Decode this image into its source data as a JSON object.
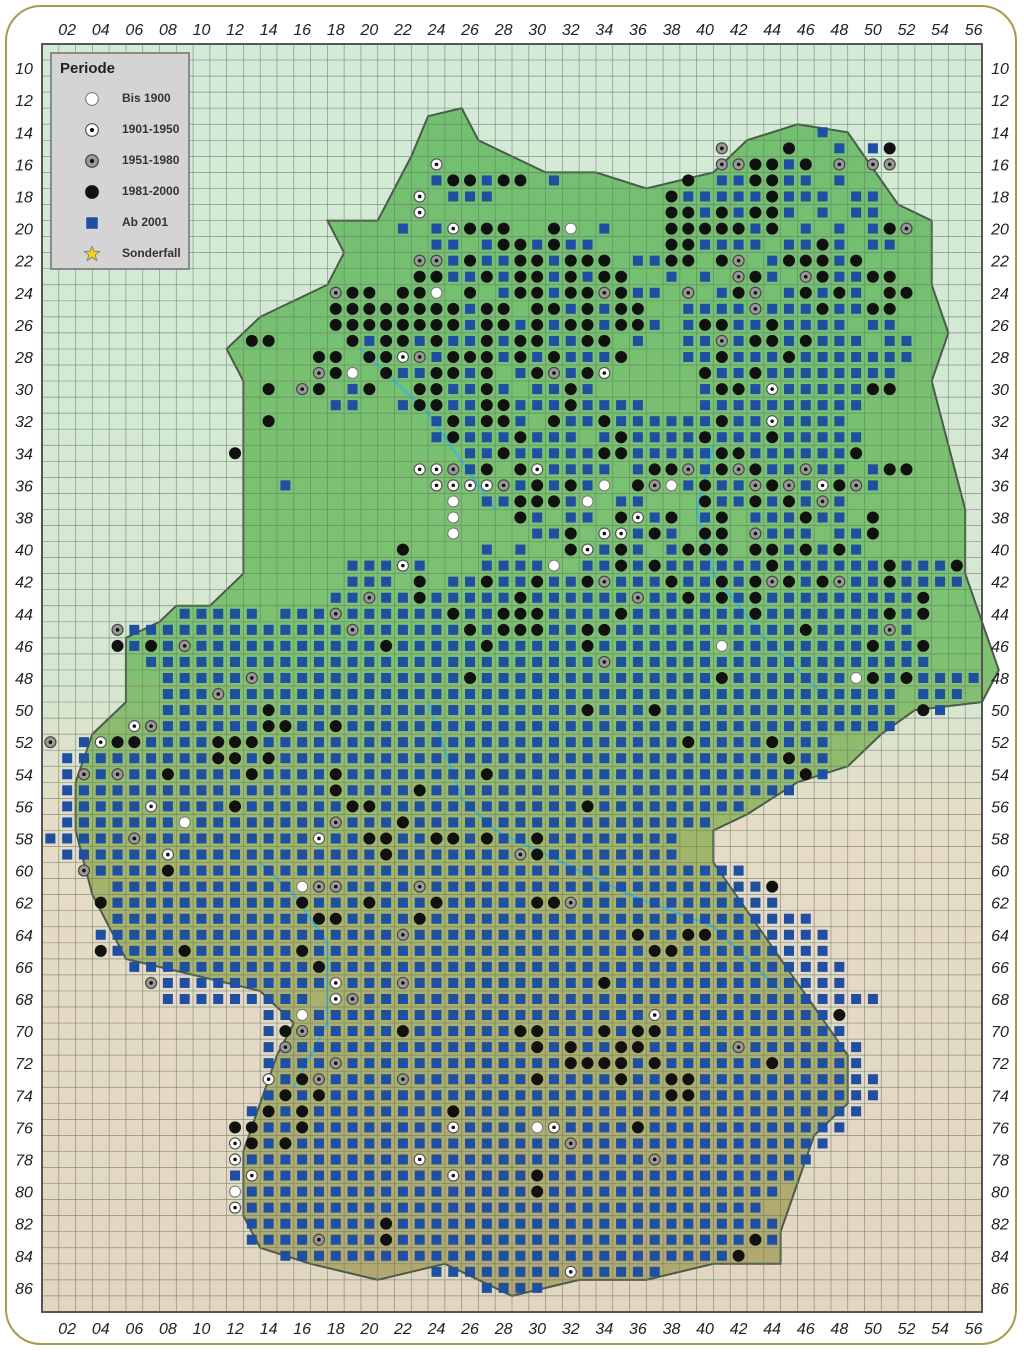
{
  "map": {
    "x_labels": [
      "02",
      "04",
      "06",
      "08",
      "10",
      "12",
      "14",
      "16",
      "18",
      "20",
      "22",
      "24",
      "26",
      "28",
      "30",
      "32",
      "34",
      "36",
      "38",
      "40",
      "42",
      "44",
      "46",
      "48",
      "50",
      "52",
      "54",
      "56"
    ],
    "y_labels": [
      "10",
      "12",
      "14",
      "16",
      "18",
      "20",
      "22",
      "24",
      "26",
      "28",
      "30",
      "32",
      "34",
      "36",
      "38",
      "40",
      "42",
      "44",
      "46",
      "48",
      "50",
      "52",
      "54",
      "56",
      "58",
      "60",
      "62",
      "64",
      "66",
      "68",
      "70",
      "72",
      "74",
      "76",
      "78",
      "80",
      "82",
      "84",
      "86"
    ],
    "colors": {
      "square": "#1f4fa0",
      "circle_black": "#111111",
      "frame": "#a89a4a",
      "grid": "#6a7a6a",
      "land_north": "#72c070",
      "land_south": "#9fb86a",
      "outside_north": "#d2ead6",
      "outside_south": "#e6dcc6",
      "rivers": "#3ab8e0"
    }
  },
  "legend": {
    "title": "Periode",
    "items": [
      {
        "key": "o",
        "label": "Bis 1900",
        "icon": "white-circle-icon"
      },
      {
        "key": "d",
        "label": "1901-1950",
        "icon": "dotted-circle-icon"
      },
      {
        "key": "g",
        "label": "1951-1980",
        "icon": "grey-dotted-circle-icon"
      },
      {
        "key": "b",
        "label": "1981-2000",
        "icon": "black-circle-icon"
      },
      {
        "key": "s",
        "label": "Ab 2001",
        "icon": "blue-square-icon"
      },
      {
        "key": "x",
        "label": "Sonderfall",
        "icon": "star-icon"
      }
    ]
  },
  "records": [
    {
      "r": 14,
      "c": 47,
      "v": "s"
    },
    {
      "r": 15,
      "c": 41,
      "v": "g...b..s.sb"
    },
    {
      "r": 16,
      "c": 24,
      "v": "d"
    },
    {
      "r": 16,
      "c": 41,
      "v": "ggbbsb.g.gg"
    },
    {
      "r": 17,
      "c": 24,
      "v": "sbbsbb.s"
    },
    {
      "r": 17,
      "c": 39,
      "v": "b.ssbbss.s"
    },
    {
      "r": 18,
      "c": 23,
      "v": "d.sss"
    },
    {
      "r": 18,
      "c": 38,
      "v": "bsssssbsss.ss"
    },
    {
      "r": 19,
      "c": 23,
      "v": "d"
    },
    {
      "r": 19,
      "c": 38,
      "v": "bbsbsbbs.s.ss"
    },
    {
      "r": 20,
      "c": 22,
      "v": "s.sdbbb..bo.s"
    },
    {
      "r": 20,
      "c": 38,
      "v": "bbbbbsb.s.s.sbg"
    },
    {
      "r": 21,
      "c": 24,
      "v": "ss.sbbsbss"
    },
    {
      "r": 21,
      "c": 38,
      "v": "bbssss.ssbs.ss"
    },
    {
      "r": 22,
      "c": 23,
      "v": "ggsbssbbsbbb.ss"
    },
    {
      "r": 22,
      "c": 38,
      "v": "bb.bg.sbbbsb"
    },
    {
      "r": 23,
      "c": 23,
      "v": "bbssbsbbsbsbb"
    },
    {
      "r": 23,
      "c": 38,
      "v": "s.s.gbs.gbssbb"
    },
    {
      "r": 24,
      "c": 18,
      "v": "gbb.bbo.b.sbbsbbgbss.b"
    },
    {
      "r": 24,
      "c": 39,
      "v": "g.sbg.sbsbs.bb"
    },
    {
      "r": 25,
      "c": 18,
      "v": "bbbbbbbbsbb.bbsbsbb"
    },
    {
      "r": 25,
      "c": 39,
      "v": "ssssgsssbssbb"
    },
    {
      "r": 26,
      "c": 18,
      "v": "bbbbbbbbsbbsbsbbsbbs"
    },
    {
      "r": 26,
      "c": 39,
      "v": "sbbssbssss.ss"
    },
    {
      "r": 27,
      "c": 13,
      "v": "bb"
    },
    {
      "r": 27,
      "c": 19,
      "v": "bsbbsbssbsbbssbb.s"
    },
    {
      "r": 27,
      "c": 39,
      "v": "ssgsbbsbsss.ss"
    },
    {
      "r": 28,
      "c": 17,
      "v": "bb.bbdgsbbbsbsbsssb"
    },
    {
      "r": 28,
      "c": 39,
      "v": "ssbsssbsssssss"
    },
    {
      "r": 29,
      "c": 17,
      "v": "gbo.bssbbsb.sbgsbd"
    },
    {
      "r": 29,
      "c": 40,
      "v": "bssbssssssss"
    },
    {
      "r": 30,
      "c": 14,
      "v": "b.gb.sb..bbssbs.ssbs"
    },
    {
      "r": 30,
      "c": 40,
      "v": "sbbsdsssssbb"
    },
    {
      "r": 31,
      "c": 18,
      "v": "ss..sbbssbbsssbssss"
    },
    {
      "r": 31,
      "c": 40,
      "v": "ssssssssss"
    },
    {
      "r": 32,
      "c": 14,
      "v": "b"
    },
    {
      "r": 32,
      "c": 24,
      "v": "sbsbbs.bssbsssss"
    },
    {
      "r": 32,
      "c": 40,
      "v": "sbssdssss"
    },
    {
      "r": 33,
      "c": 24,
      "v": "sbsssbsss.sbsssss"
    },
    {
      "r": 33,
      "c": 40,
      "v": "bsssbsssss"
    },
    {
      "r": 34,
      "c": 12,
      "v": "b"
    },
    {
      "r": 34,
      "c": 26,
      "v": "ssbsssssbbsssss"
    },
    {
      "r": 34,
      "c": 40,
      "v": "sbbssssssb"
    },
    {
      "r": 35,
      "c": 23,
      "v": "ddgsb.bdssss.sbbg"
    },
    {
      "r": 35,
      "c": 40,
      "v": "sbgbssgss.sbb"
    },
    {
      "r": 36,
      "c": 15,
      "v": "s"
    },
    {
      "r": 36,
      "c": 24,
      "v": "ddddgsbsbso.bgos"
    },
    {
      "r": 36,
      "c": 40,
      "v": "bssgbgsdbgs"
    },
    {
      "r": 37,
      "c": 25,
      "v": "o.ssbbbso.ss"
    },
    {
      "r": 37,
      "c": 40,
      "v": "bssbsbsgs"
    },
    {
      "r": 38,
      "c": 25,
      "v": "o...bs.ss.bdsb"
    },
    {
      "r": 38,
      "c": 40,
      "v": "sb.sssbss.b"
    },
    {
      "r": 39,
      "c": 25,
      "v": "o....ssb.ddsbs"
    },
    {
      "r": 39,
      "c": 40,
      "v": "bb.gsss.ssb"
    },
    {
      "r": 40,
      "c": 22,
      "v": "b....s.s..bdsbs.sbbb.bbsbsbs"
    },
    {
      "r": 41,
      "c": 19,
      "v": "sssds...sssso.ssbsbssssssbssssssbsssb"
    },
    {
      "r": 42,
      "c": 19,
      "v": "sss.b.ssbssbssbgsssbssbsbgbsbgssbssss"
    },
    {
      "r": 43,
      "c": 18,
      "v": "ssgssbsssssbssssssgssbsbsbsssssssssb"
    },
    {
      "r": 44,
      "c": 9,
      "v": "sssss.sssgssssssbssbbbssssbsssssssbsssssssbsb"
    },
    {
      "r": 45,
      "c": 5,
      "v": "gsssssssssssssgssssssbsbbbssbbsssssssssssbssssgs"
    },
    {
      "r": 46,
      "c": 5,
      "v": "bsbsgsssssssssssbsssssbsssssbsssssssossssssssbssb"
    },
    {
      "r": 47,
      "c": 7,
      "v": "sssssssssssssssssssssssssssgsssssssssssssssssss"
    },
    {
      "r": 48,
      "c": 8,
      "v": "sssssgssssssssssssbssssssssssssssbsssssssobsbssss"
    },
    {
      "r": 49,
      "c": 8,
      "v": "sssgssssssssssssssssssssssssssssssssssssssss.sss"
    },
    {
      "r": 50,
      "c": 8,
      "v": "ssssssbssssssssssssssssssbsssbssssssssssssss.bs"
    },
    {
      "r": 51,
      "c": 6,
      "v": "dgssssssbbssbsssssssssssssssssssssssssssssssss"
    },
    {
      "r": 52,
      "c": 1,
      "v": "g.sdbbssssbbbsssssssssssssssssssssssssbssssbsss"
    },
    {
      "r": 53,
      "c": 2,
      "v": "sssssssssbbsbssssssssssssssssssssssssssssssbss"
    },
    {
      "r": 54,
      "c": 2,
      "v": "sgsgssbssssbssssbssssssssbssssssssssssssssssbs"
    },
    {
      "r": 55,
      "c": 2,
      "v": "ssssssssssssssssbssssbssssssssssssssssssssss"
    },
    {
      "r": 56,
      "c": 2,
      "v": "sssssdssssbssssssbbssssssssssssbsssssssss"
    },
    {
      "r": 57,
      "c": 2,
      "v": "sssssssossssssssgsssbssssssssssssssssss"
    },
    {
      "r": 58,
      "c": 1,
      "v": "sssssgssssssssssdssbbssbbsbssbssssssss"
    },
    {
      "r": 59,
      "c": 2,
      "v": "ssssssdssssssssssssbsssssssgbssssssss"
    },
    {
      "r": 60,
      "c": 3,
      "v": "gssssbssssssssssssssssssssssssssssssssss"
    },
    {
      "r": 61,
      "c": 5,
      "v": "sssssssssssoggssssgssssssssssssssssssssb"
    },
    {
      "r": 62,
      "c": 4,
      "v": "bsssssssssssbsssbsssbsssssbbgssssssssssss"
    },
    {
      "r": 63,
      "c": 5,
      "v": "ssssssssssssbbssssbsssssssssssssssssssssss"
    },
    {
      "r": 64,
      "c": 4,
      "v": "ssssssssssssssssssgsssssssssssssbssbbsssssss"
    },
    {
      "r": 65,
      "c": 4,
      "v": "bssssbssssssbssssssssssssssssssssbbsssssssss"
    },
    {
      "r": 66,
      "c": 6,
      "v": "sssssssssssbsssssssssssssssssssssssssssssss"
    },
    {
      "r": 67,
      "c": 7,
      "v": "gssssssssssdsssgsssssssssssbssssssssssssss"
    },
    {
      "r": 68,
      "c": 8,
      "v": "sssssssss.dgsssssssssssssssssssssssssssssss"
    },
    {
      "r": 69,
      "c": 14,
      "v": "ssossssssssssssssssssssdssssssssssb"
    },
    {
      "r": 70,
      "c": 14,
      "v": "sbgsssssbssssssbbsssbsbbsssssssssss"
    },
    {
      "r": 71,
      "c": 14,
      "v": "sgssssssssssssssbsbssbbsssssgsssssss"
    },
    {
      "r": 72,
      "c": 14,
      "v": "ssssgsssssssssssssbbbbsbssssssbsssss"
    },
    {
      "r": 73,
      "c": 14,
      "v": "dsbgssssgsssssssbssssbssbbsssssssssss"
    },
    {
      "r": 74,
      "c": 14,
      "v": "sbsbssssssssssssssssssssbbsssssssssss"
    },
    {
      "r": 75,
      "c": 13,
      "v": "sbsbssssssssbssssssssssssssssssssssss"
    },
    {
      "r": 76,
      "c": 12,
      "v": "bbssbssssssssdssssodssssbssssssssssss"
    },
    {
      "r": 77,
      "c": 12,
      "v": "dbsbssssssssssssssssgsssssssssssssss"
    },
    {
      "r": 78,
      "c": 12,
      "v": "dssssssssssdsssssssssssssgsssssssss"
    },
    {
      "r": 79,
      "c": 12,
      "v": "sdsssssssssssdssssbsssssssssssssss"
    },
    {
      "r": 80,
      "c": 12,
      "v": "osssssssssssssssssbssssssssssssss"
    },
    {
      "r": 81,
      "c": 12,
      "v": "dsssssssssssssssssssssssssssssss"
    },
    {
      "r": 82,
      "c": 13,
      "v": "ssssssssbsssssssssssssssssssssss"
    },
    {
      "r": 83,
      "c": 13,
      "v": "ssssgsssbsssssssssssssssssssssbs"
    },
    {
      "r": 84,
      "c": 15,
      "v": "sssssssssssssssssssssssssssb"
    },
    {
      "r": 85,
      "c": 24,
      "v": "ssssssssdsssss"
    },
    {
      "r": 86,
      "c": 27,
      "v": "ssss"
    }
  ]
}
